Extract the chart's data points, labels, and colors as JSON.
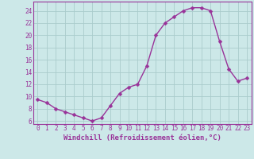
{
  "x": [
    0,
    1,
    2,
    3,
    4,
    5,
    6,
    7,
    8,
    9,
    10,
    11,
    12,
    13,
    14,
    15,
    16,
    17,
    18,
    19,
    20,
    21,
    22,
    23
  ],
  "y": [
    9.5,
    9.0,
    8.0,
    7.5,
    7.0,
    6.5,
    6.0,
    6.5,
    8.5,
    10.5,
    11.5,
    12.0,
    15.0,
    20.0,
    22.0,
    23.0,
    24.0,
    24.5,
    24.5,
    24.0,
    19.0,
    14.5,
    12.5,
    13.0
  ],
  "line_color": "#993399",
  "marker_color": "#993399",
  "bg_color": "#cce8e8",
  "grid_color": "#aacccc",
  "xlabel": "Windchill (Refroidissement éolien,°C)",
  "xlim": [
    -0.5,
    23.5
  ],
  "ylim": [
    5.5,
    25.5
  ],
  "yticks": [
    6,
    8,
    10,
    12,
    14,
    16,
    18,
    20,
    22,
    24
  ],
  "xticks": [
    0,
    1,
    2,
    3,
    4,
    5,
    6,
    7,
    8,
    9,
    10,
    11,
    12,
    13,
    14,
    15,
    16,
    17,
    18,
    19,
    20,
    21,
    22,
    23
  ],
  "tick_fontsize": 5.5,
  "xlabel_fontsize": 6.5,
  "marker_size": 2.5,
  "line_width": 1.0
}
